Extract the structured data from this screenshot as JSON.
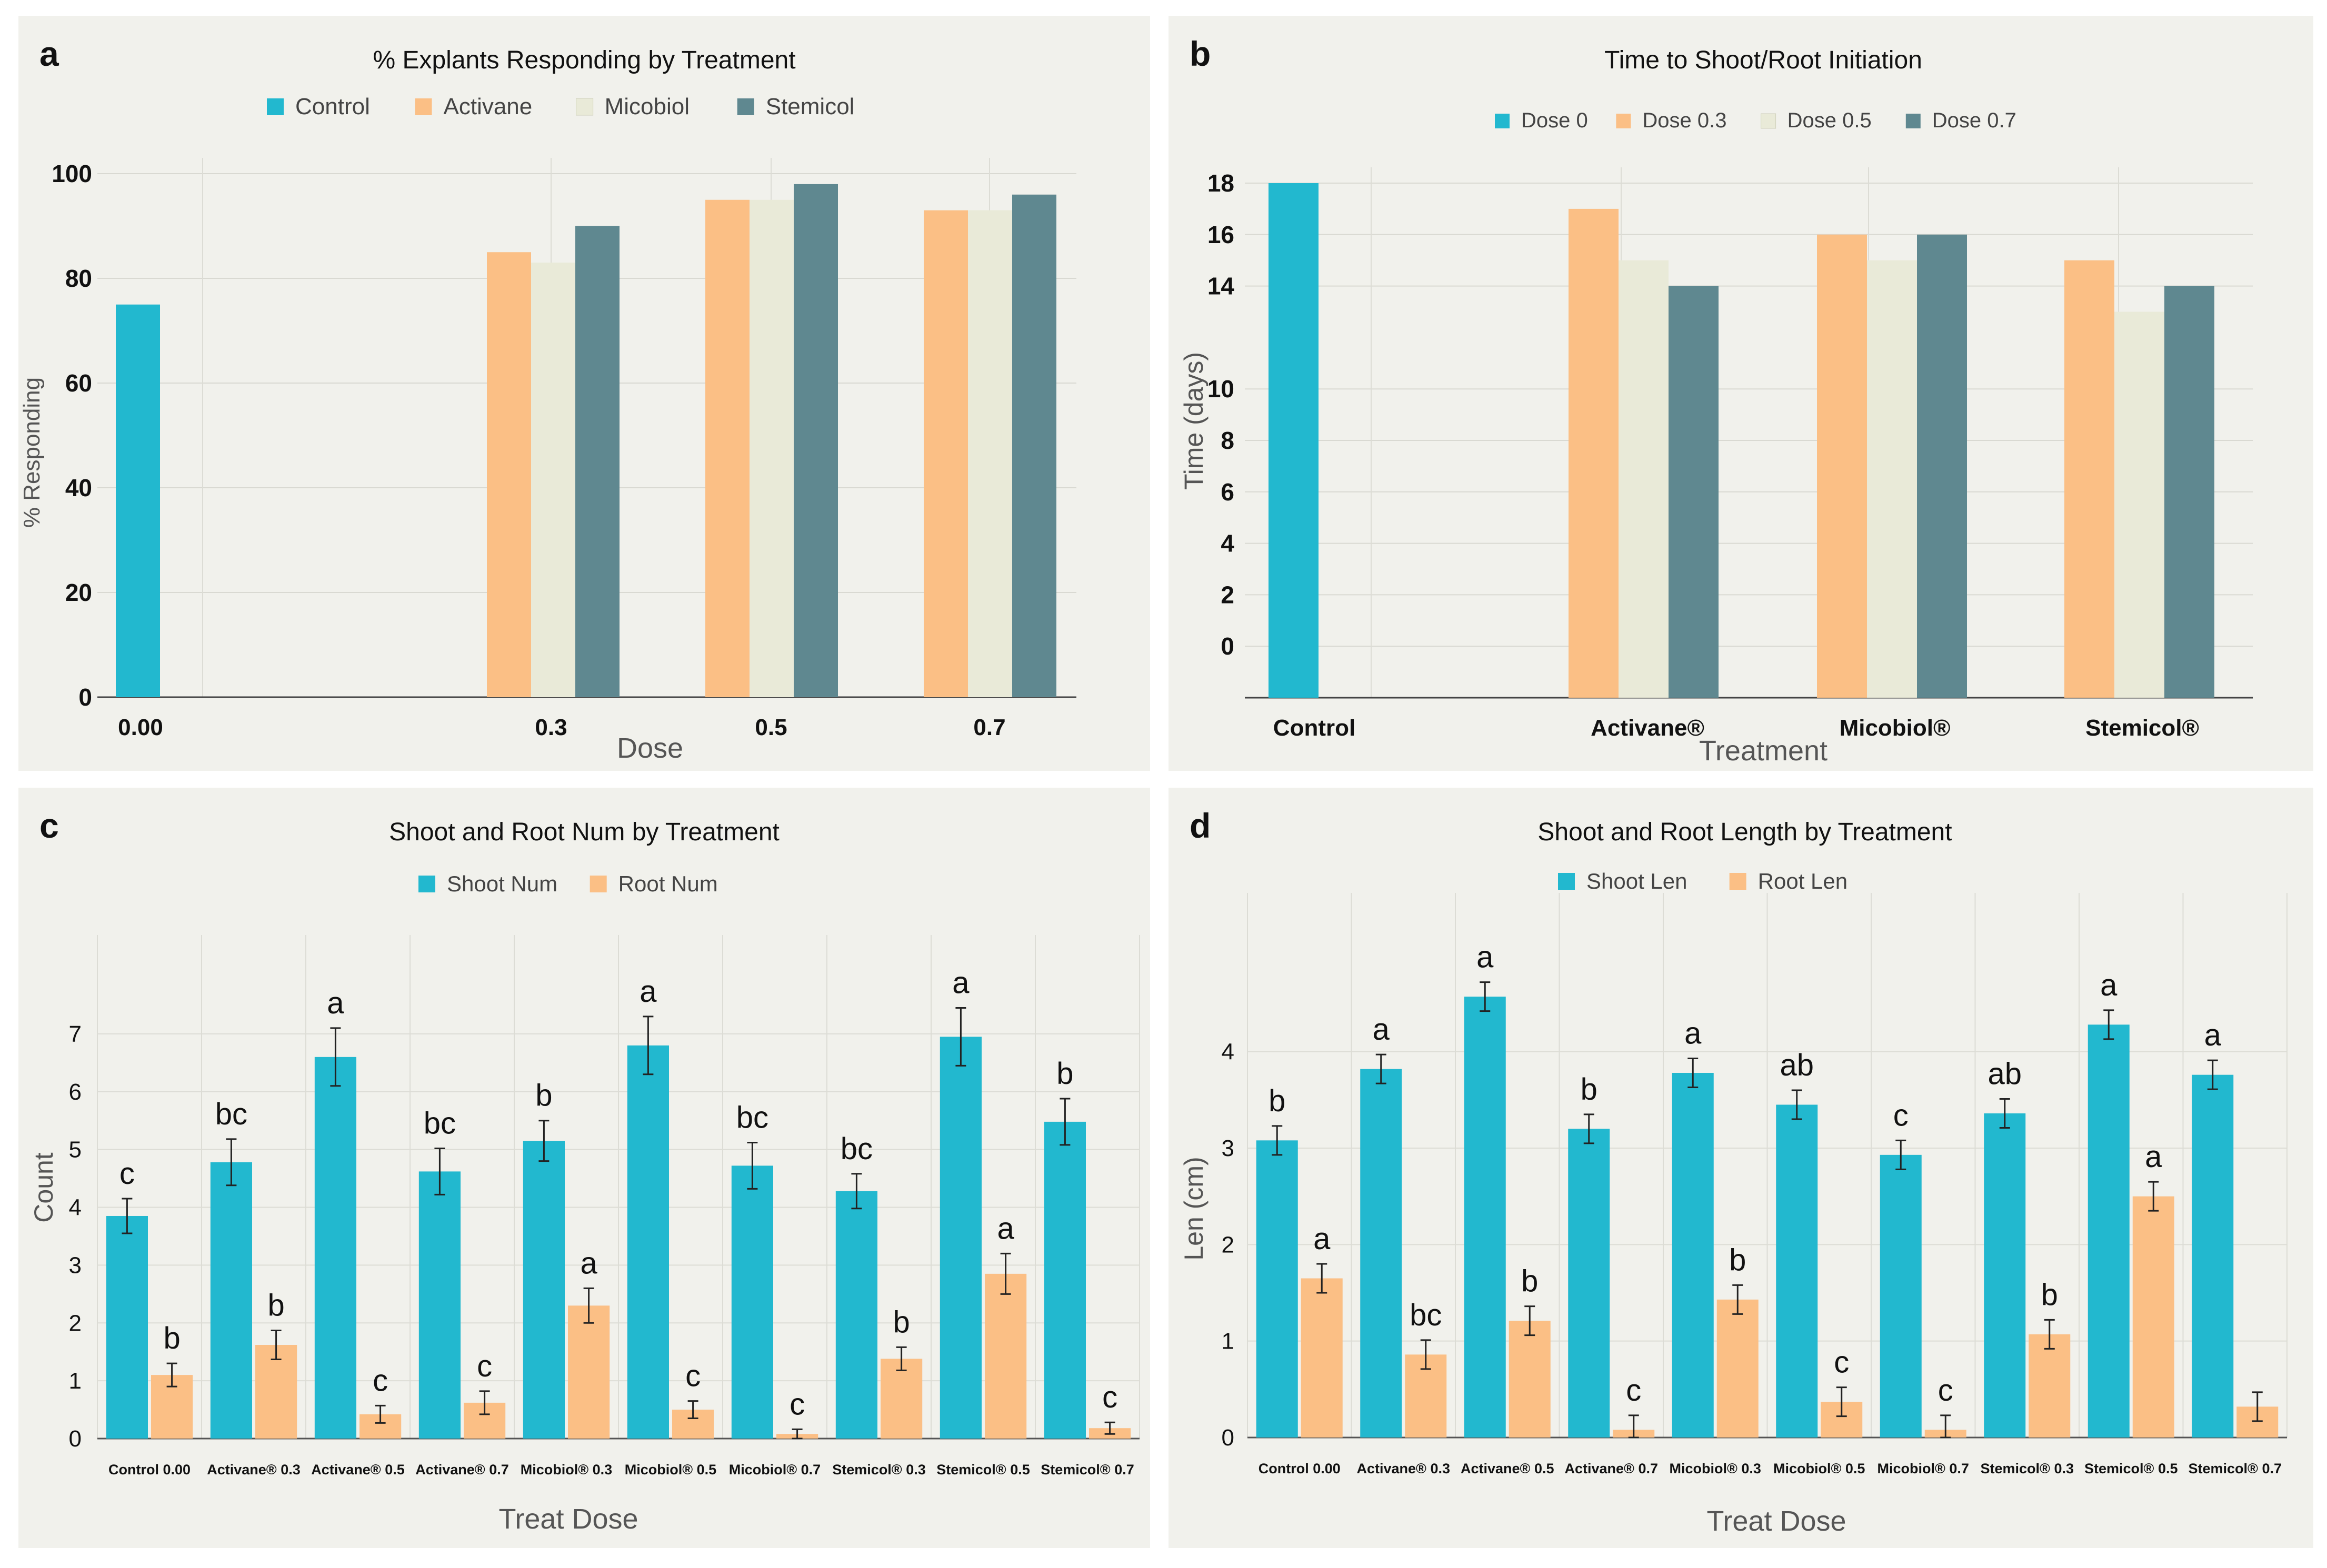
{
  "chart_data": [
    {
      "panel_letter": "a",
      "type": "bar",
      "title": "% Explants Responding by Treatment",
      "xlabel": "Dose",
      "ylabel": "% Responding",
      "ylim": [
        0,
        100
      ],
      "yticks": [
        "0",
        "20",
        "40",
        "60",
        "80",
        "100"
      ],
      "categories": [
        "0.00",
        "0.3",
        "0.5",
        "0.7"
      ],
      "series": [
        {
          "name": "Control",
          "color": "#22b8cf",
          "values": [
            75,
            null,
            null,
            null
          ]
        },
        {
          "name": "Activane",
          "color": "#fbbf85",
          "values": [
            null,
            85,
            95,
            93
          ]
        },
        {
          "name": "Micobiol",
          "color": "#e9ead8",
          "values": [
            null,
            83,
            95,
            93
          ]
        },
        {
          "name": "Stemicol",
          "color": "#5f8890",
          "values": [
            null,
            90,
            98,
            96
          ]
        }
      ],
      "grid": true,
      "legend": "top"
    },
    {
      "panel_letter": "b",
      "type": "bar",
      "title": "Time to Shoot/Root Initiation",
      "xlabel": "Treatment",
      "ylabel": "Time (days)",
      "ylim": [
        -2,
        18
      ],
      "yticks": [
        "0",
        "2",
        "4",
        "6",
        "8",
        "10",
        "14",
        "16",
        "18"
      ],
      "categories": [
        "Control",
        "Activane®",
        "Micobiol®",
        "Stemicol®"
      ],
      "series": [
        {
          "name": "Dose 0",
          "color": "#22b8cf",
          "values": [
            18,
            null,
            null,
            null
          ]
        },
        {
          "name": "Dose 0.3",
          "color": "#fbbf85",
          "values": [
            null,
            17,
            16,
            15
          ]
        },
        {
          "name": "Dose 0.5",
          "color": "#e9ead8",
          "values": [
            null,
            15,
            15,
            13
          ]
        },
        {
          "name": "Dose 0.7",
          "color": "#5f8890",
          "values": [
            null,
            14,
            16,
            14
          ]
        }
      ],
      "grid": true,
      "legend": "top"
    },
    {
      "panel_letter": "c",
      "type": "bar",
      "title": "Shoot and Root Num by Treatment",
      "xlabel": "Treat Dose",
      "ylabel": "Count",
      "ylim": [
        0,
        7.8
      ],
      "yticks": [
        "0",
        "1",
        "2",
        "3",
        "4",
        "5",
        "6",
        "7"
      ],
      "categories": [
        "Control 0.00",
        "Activane® 0.3",
        "Activane® 0.5",
        "Activane® 0.7",
        "Micobiol® 0.3",
        "Micobiol® 0.5",
        "Micobiol® 0.7",
        "Stemicol® 0.3",
        "Stemicol® 0.5",
        "Stemicol® 0.7"
      ],
      "series": [
        {
          "name": "Shoot Num",
          "color": "#22b8cf",
          "values": [
            3.85,
            4.78,
            6.6,
            4.62,
            5.15,
            6.8,
            4.72,
            4.28,
            6.95,
            5.48
          ],
          "errors": [
            0.3,
            0.4,
            0.5,
            0.4,
            0.35,
            0.5,
            0.4,
            0.3,
            0.5,
            0.4
          ],
          "letters": [
            "c",
            "bc",
            "a",
            "bc",
            "b",
            "a",
            "bc",
            "bc",
            "a",
            "b"
          ]
        },
        {
          "name": "Root Num",
          "color": "#fbbf85",
          "values": [
            1.1,
            1.62,
            0.42,
            0.62,
            2.3,
            0.5,
            0.08,
            1.38,
            2.85,
            0.18
          ],
          "errors": [
            0.2,
            0.25,
            0.15,
            0.2,
            0.3,
            0.15,
            0.08,
            0.2,
            0.35,
            0.1
          ],
          "letters": [
            "b",
            "b",
            "c",
            "c",
            "a",
            "c",
            "c",
            "b",
            "a",
            "c"
          ]
        }
      ],
      "grid": true,
      "legend": "top"
    },
    {
      "panel_letter": "d",
      "type": "bar",
      "title": "Shoot and Root Length by Treatment",
      "xlabel": "Treat Dose",
      "ylabel": "Len (cm)",
      "ylim": [
        0,
        5.1
      ],
      "yticks": [
        "0",
        "1",
        "2",
        "3",
        "4"
      ],
      "categories": [
        "Control 0.00",
        "Activane® 0.3",
        "Activane® 0.5",
        "Activane® 0.7",
        "Micobiol® 0.3",
        "Micobiol® 0.5",
        "Micobiol® 0.7",
        "Stemicol® 0.3",
        "Stemicol® 0.5",
        "Stemicol® 0.7"
      ],
      "series": [
        {
          "name": "Shoot Len",
          "color": "#22b8cf",
          "values": [
            3.08,
            3.82,
            4.57,
            3.2,
            3.78,
            3.45,
            2.93,
            3.36,
            4.28,
            3.76
          ],
          "errors": [
            0.15,
            0.15,
            0.15,
            0.15,
            0.15,
            0.15,
            0.15,
            0.15,
            0.15,
            0.15
          ],
          "letters": [
            "b",
            "a",
            "a",
            "b",
            "a",
            "ab",
            "c",
            "ab",
            "a",
            "a"
          ]
        },
        {
          "name": "Root Len",
          "color": "#fbbf85",
          "values": [
            1.65,
            0.86,
            1.21,
            0.08,
            1.43,
            0.37,
            0.08,
            1.07,
            2.5,
            0.32
          ],
          "errors": [
            0.15,
            0.15,
            0.15,
            0.15,
            0.15,
            0.15,
            0.15,
            0.15,
            0.15,
            0.15
          ],
          "letters": [
            "a",
            "bc",
            "b",
            "c",
            "b",
            "c",
            "c",
            "b",
            "a",
            null
          ]
        }
      ],
      "grid": true,
      "legend": "top"
    }
  ]
}
